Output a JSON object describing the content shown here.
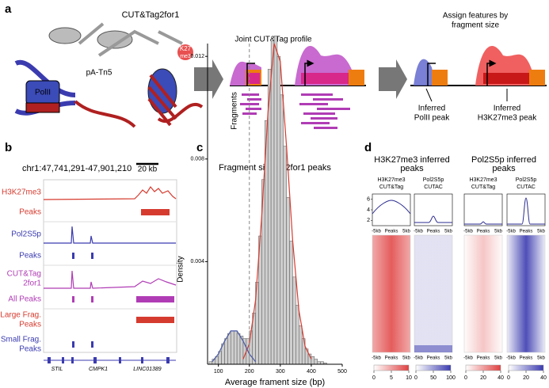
{
  "panel_a": {
    "label": "a",
    "construct": "CUT&Tag2for1",
    "mark_top": "K27",
    "mark_bottom": "me3",
    "polymerase": "PolII",
    "enzyme": "pA-Tn5",
    "profile_title": "Joint CUT&Tag profile",
    "fragments": "Fragments",
    "assign_title": [
      "Assign features by",
      "fragment size"
    ],
    "inferred_pol": [
      "Inferred",
      "PolII peak"
    ],
    "inferred_k27": [
      "Inferred",
      "H3K27me3 peak"
    ]
  },
  "panel_b": {
    "label": "b",
    "locus": "chr1:47,741,291-47,901,210",
    "scale": "20 kb",
    "tracks": [
      {
        "name": [
          "H3K27me3"
        ],
        "color": "#d63b2f"
      },
      {
        "name": [
          "Peaks"
        ],
        "color": "#d63b2f"
      },
      {
        "name": [
          "Pol2S5p"
        ],
        "color": "#3b3bb0"
      },
      {
        "name": [
          "Peaks"
        ],
        "color": "#3b3bb0"
      },
      {
        "name": [
          "CUT&Tag",
          "2for1"
        ],
        "color": "#b03cb5"
      },
      {
        "name": [
          "All Peaks"
        ],
        "color": "#b03cb5"
      },
      {
        "name": [
          "Large Frag.",
          "Peaks"
        ],
        "color": "#d63b2f"
      },
      {
        "name": [
          "Small Frag.",
          "Peaks"
        ],
        "color": "#3b3bb0"
      }
    ],
    "genes": [
      "STIL",
      "CMPK1",
      "LINC01389"
    ]
  },
  "panel_c": {
    "label": "c",
    "chart_data": {
      "type": "histogram",
      "title": "Fragment size in 2for1 peaks",
      "xlabel": "Average frament size (bp)",
      "ylabel": "Density",
      "color": "#cfcfcf",
      "bins": [
        70,
        80,
        90,
        100,
        110,
        120,
        130,
        140,
        150,
        160,
        170,
        180,
        190,
        200,
        210,
        220,
        230,
        240,
        250,
        260,
        270,
        280,
        290,
        300,
        310,
        320,
        330,
        340,
        350,
        360,
        370,
        380,
        390,
        400,
        410,
        420,
        430,
        440,
        450
      ],
      "values": [
        0.0001,
        0.0002,
        0.0003,
        0.0005,
        0.0008,
        0.001,
        0.0012,
        0.0013,
        0.0013,
        0.0012,
        0.0011,
        0.001,
        0.001,
        0.0013,
        0.002,
        0.0032,
        0.005,
        0.0072,
        0.0095,
        0.0115,
        0.0126,
        0.0128,
        0.012,
        0.0105,
        0.0085,
        0.0065,
        0.0048,
        0.0034,
        0.0023,
        0.0015,
        0.001,
        0.0006,
        0.0004,
        0.0003,
        0.0002,
        0.0001,
        0.0001,
        5e-05
      ],
      "series": [
        {
          "color": "#d63b2f",
          "x": [
            180,
            200,
            220,
            240,
            260,
            280,
            300,
            320,
            340,
            360,
            380,
            400
          ],
          "values": [
            0.0002,
            0.0008,
            0.0025,
            0.0058,
            0.0098,
            0.0125,
            0.0118,
            0.0085,
            0.0048,
            0.0021,
            0.0007,
            0.0002
          ]
        },
        {
          "color": "#4a5aa8",
          "x": [
            80,
            100,
            120,
            140,
            160,
            180,
            200,
            220
          ],
          "values": [
            0.0001,
            0.0004,
            0.0009,
            0.0013,
            0.0013,
            0.0009,
            0.0004,
            0.0001
          ]
        }
      ],
      "vline": 200,
      "xlim": [
        65,
        500
      ],
      "ylim": [
        0,
        0.0125
      ],
      "xticks": [
        100,
        200,
        300,
        400,
        500
      ],
      "yticks": [
        0.004,
        0.008,
        0.012
      ]
    }
  },
  "panel_d": {
    "label": "d",
    "profile_yticks": [
      2,
      4,
      6
    ],
    "profile_xlabels": [
      "-5kb",
      "Peaks",
      "5kb"
    ],
    "groups": [
      {
        "title": [
          "H3K27me3 inferred",
          "peaks"
        ],
        "columns": [
          {
            "name": [
              "H3K27me3",
              "CUT&Tag"
            ],
            "color": "#e04040",
            "colorbar_ticks": [
              0,
              5,
              10
            ]
          },
          {
            "name": [
              "Pol2S5p",
              "CUTAC"
            ],
            "color": "#3a3ab0",
            "colorbar_ticks": [
              0,
              50,
              100
            ]
          }
        ]
      },
      {
        "title": [
          "Pol2S5p inferred",
          "peaks"
        ],
        "columns": [
          {
            "name": [
              "H3K27me3",
              "CUT&Tag"
            ],
            "color": "#e04040",
            "colorbar_ticks": [
              0,
              20,
              40
            ]
          },
          {
            "name": [
              "Pol2S5p",
              "CUTAC"
            ],
            "color": "#3a3ab0",
            "colorbar_ticks": [
              0,
              20,
              40
            ]
          }
        ]
      }
    ]
  }
}
